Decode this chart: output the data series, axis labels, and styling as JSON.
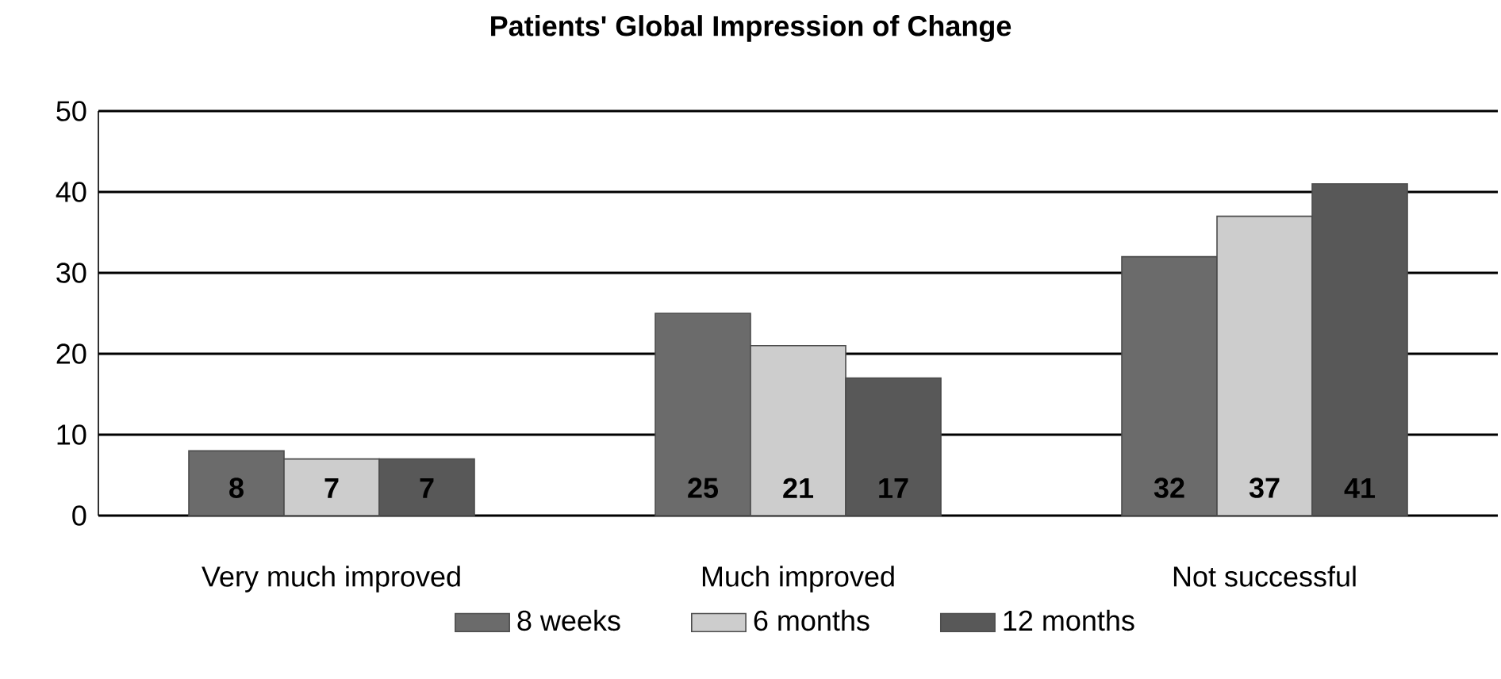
{
  "chart_data": {
    "type": "bar",
    "title": "Patients' Global Impression of Change",
    "categories": [
      "Very  much improved",
      "Much improved",
      "Not successful"
    ],
    "series": [
      {
        "name": "8 weeks",
        "color": "#6b6b6b",
        "values": [
          8,
          25,
          32
        ]
      },
      {
        "name": "6 months",
        "color": "#cdcdcd",
        "values": [
          7,
          21,
          37
        ]
      },
      {
        "name": "12 months",
        "color": "#585858",
        "values": [
          7,
          17,
          41
        ]
      }
    ],
    "ylim": [
      0,
      50
    ],
    "yticks": [
      0,
      10,
      20,
      30,
      40,
      50
    ],
    "grid": "y",
    "legend": "bottom",
    "data_labels": true
  }
}
